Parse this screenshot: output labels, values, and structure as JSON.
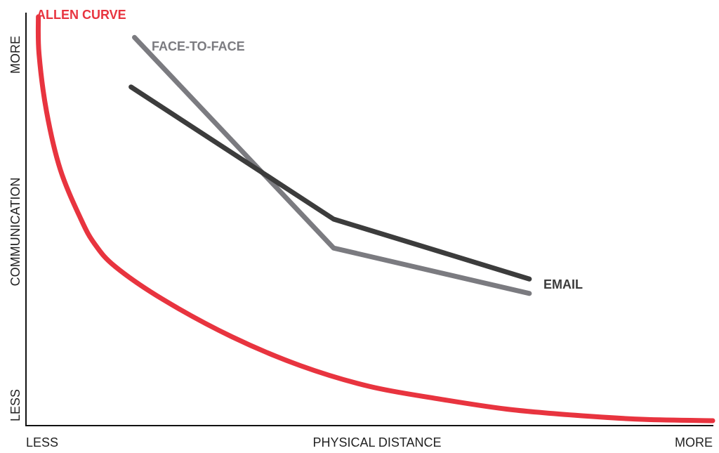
{
  "chart_data": {
    "type": "line",
    "title": "",
    "xlabel": "PHYSICAL DISTANCE",
    "ylabel": "COMMUNICATION",
    "x_tick_labels": {
      "low": "LESS",
      "high": "MORE"
    },
    "y_tick_labels": {
      "low": "LESS",
      "high": "MORE"
    },
    "xlim": [
      0,
      100
    ],
    "ylim": [
      0,
      100
    ],
    "grid": false,
    "series": [
      {
        "name": "ALLEN CURVE",
        "color": "#e8343f",
        "points": [
          [
            1.8,
            99
          ],
          [
            1.9,
            90
          ],
          [
            3,
            76
          ],
          [
            5,
            62
          ],
          [
            8,
            50
          ],
          [
            10,
            44
          ],
          [
            13,
            38.5
          ],
          [
            20,
            30.5
          ],
          [
            30,
            21.5
          ],
          [
            40,
            14.5
          ],
          [
            50,
            9.5
          ],
          [
            60,
            6.5
          ],
          [
            70,
            4
          ],
          [
            80,
            2.5
          ],
          [
            90,
            1.5
          ],
          [
            100,
            1.2
          ]
        ]
      },
      {
        "name": "FACE-TO-FACE",
        "color": "#7b7b80",
        "points": [
          [
            15.8,
            94
          ],
          [
            44.8,
            43
          ],
          [
            73.3,
            32
          ]
        ]
      },
      {
        "name": "EMAIL",
        "color": "#3c3c3c",
        "points": [
          [
            15.3,
            82
          ],
          [
            44.8,
            50
          ],
          [
            73.3,
            35.5
          ]
        ]
      }
    ]
  }
}
